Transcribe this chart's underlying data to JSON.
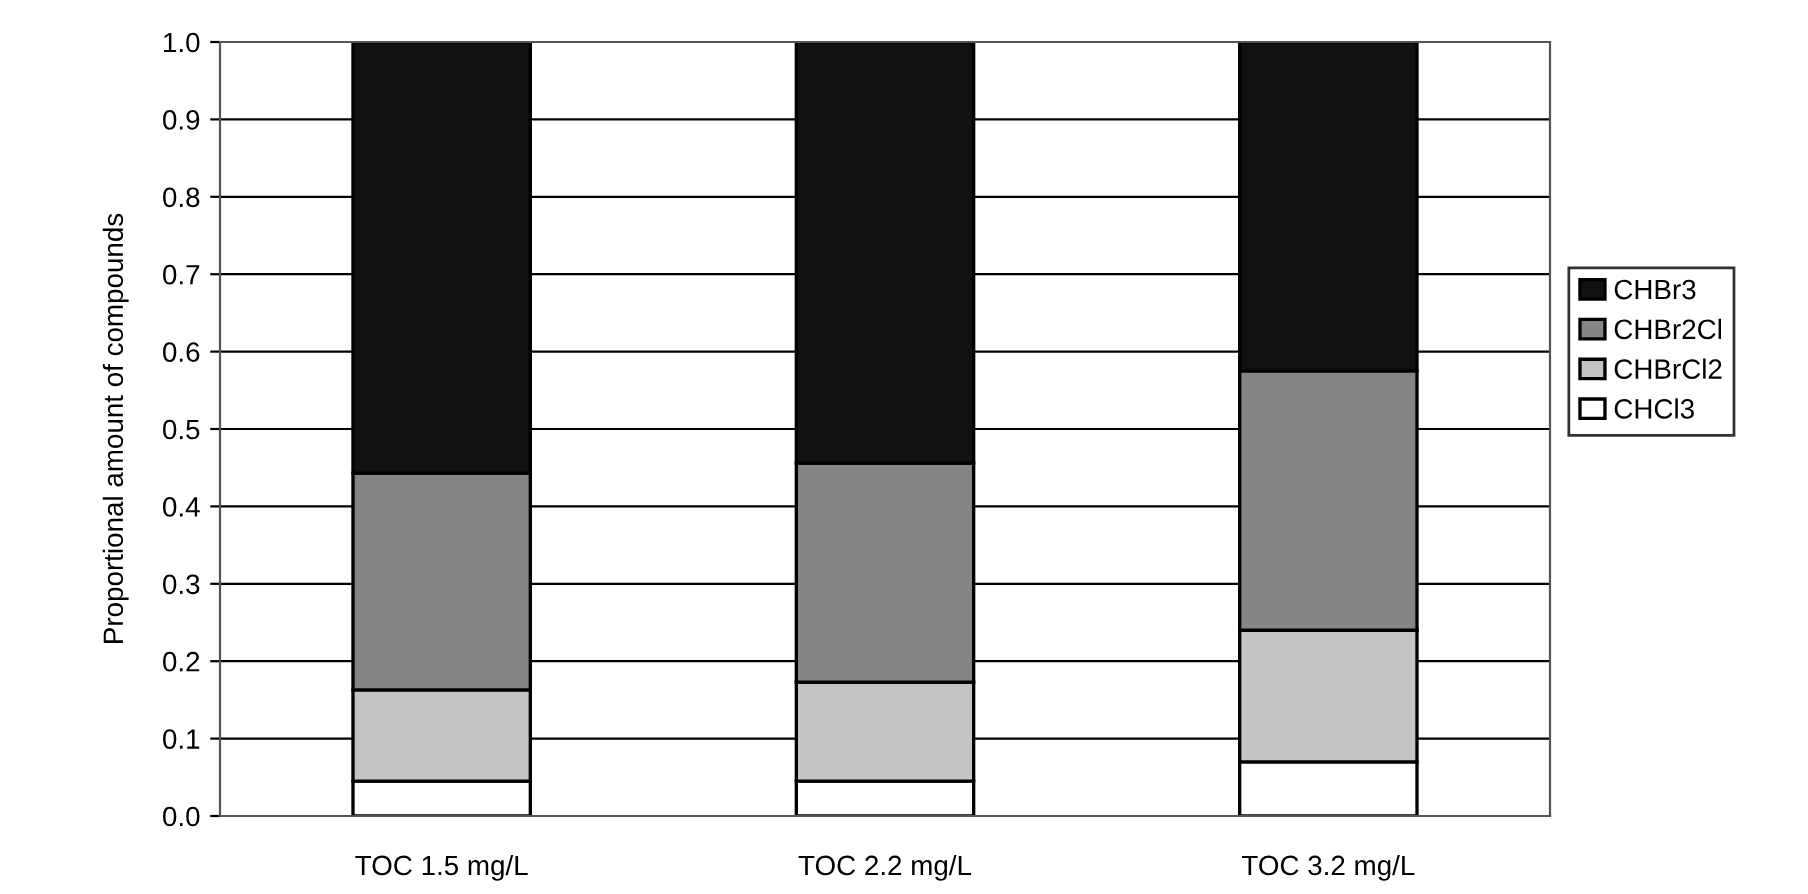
{
  "chart_data": {
    "type": "bar",
    "stacked": true,
    "ylabel": "Proportional amount of compounds",
    "categories": [
      "TOC 1.5 mg/L",
      "TOC 2.2 mg/L",
      "TOC 3.2 mg/L"
    ],
    "series": [
      {
        "name": "CHCl3",
        "color": "#ffffff",
        "values": [
          0.045,
          0.045,
          0.07
        ]
      },
      {
        "name": "CHBrCl2",
        "color": "#c4c4c4",
        "values": [
          0.118,
          0.128,
          0.17
        ]
      },
      {
        "name": "CHBr2Cl",
        "color": "#858585",
        "values": [
          0.28,
          0.283,
          0.335
        ]
      },
      {
        "name": "CHBr3",
        "color": "#111111",
        "values": [
          0.557,
          0.544,
          0.425
        ]
      }
    ],
    "ylim": [
      0,
      1.0
    ],
    "yticks": [
      {
        "value": 0,
        "label": "0.0"
      },
      {
        "value": 0.1,
        "label": "0.1"
      },
      {
        "value": 0.2,
        "label": "0.2"
      },
      {
        "value": 0.3,
        "label": "0.3"
      },
      {
        "value": 0.4,
        "label": "0.4"
      },
      {
        "value": 0.5,
        "label": "0.5"
      },
      {
        "value": 0.6,
        "label": "0.6"
      },
      {
        "value": 0.7,
        "label": "0.7"
      },
      {
        "value": 0.8,
        "label": "0.8"
      },
      {
        "value": 0.9,
        "label": "0.9"
      },
      {
        "value": 1.0,
        "label": "1.0"
      }
    ],
    "grid": "y",
    "legend": "right"
  }
}
